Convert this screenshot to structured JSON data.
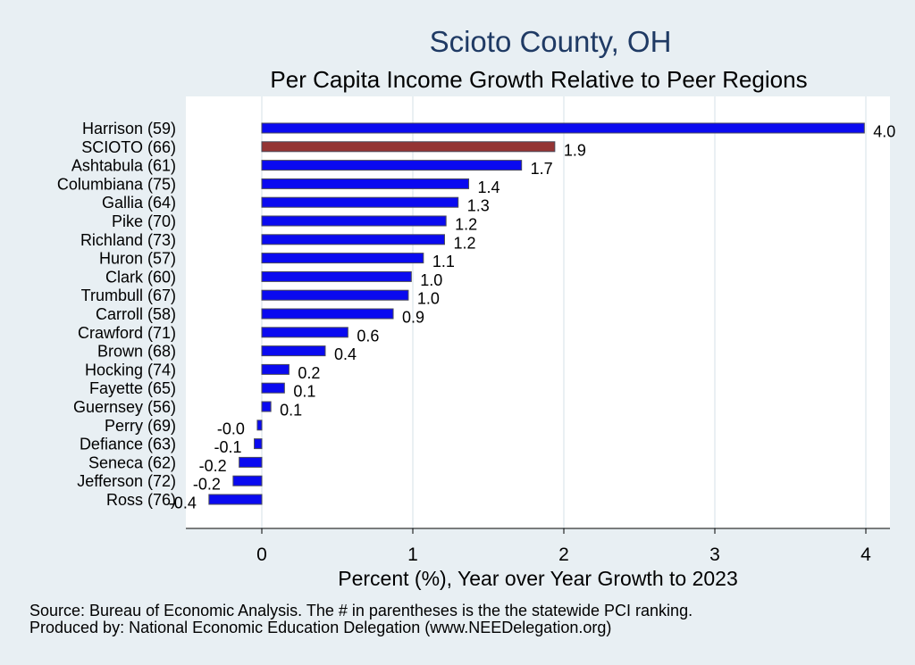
{
  "chart_data": {
    "type": "bar",
    "orientation": "horizontal",
    "title": "Scioto County, OH",
    "subtitle": "Per Capita Income Growth Relative to Peer Regions",
    "xlabel": "Percent (%), Year over Year Growth to 2023",
    "ylabel": "",
    "xlim": [
      -0.5,
      4.15
    ],
    "xticks": [
      0,
      1,
      2,
      3,
      4
    ],
    "xtick_labels": [
      "0",
      "1",
      "2",
      "3",
      "4"
    ],
    "grid": true,
    "categories": [
      "Harrison (59)",
      "SCIOTO (66)",
      "Ashtabula (61)",
      "Columbiana (75)",
      "Gallia (64)",
      "Pike (70)",
      "Richland (73)",
      "Huron (57)",
      "Clark (60)",
      "Trumbull (67)",
      "Carroll (58)",
      "Crawford (71)",
      "Brown (68)",
      "Hocking (74)",
      "Fayette (65)",
      "Guernsey (56)",
      "Perry (69)",
      "Defiance (63)",
      "Seneca (62)",
      "Jefferson (72)",
      "Ross (76)"
    ],
    "values": [
      3.99,
      1.94,
      1.72,
      1.37,
      1.3,
      1.22,
      1.21,
      1.07,
      0.99,
      0.97,
      0.87,
      0.57,
      0.42,
      0.18,
      0.15,
      0.06,
      -0.03,
      -0.05,
      -0.15,
      -0.19,
      -0.35
    ],
    "value_labels": [
      "4.0",
      "1.9",
      "1.7",
      "1.4",
      "1.3",
      "1.2",
      "1.2",
      "1.1",
      "1.0",
      "1.0",
      "0.9",
      "0.6",
      "0.4",
      "0.2",
      "0.1",
      "0.1",
      "-0.0",
      "-0.1",
      "-0.2",
      "-0.2",
      "-0.4"
    ],
    "highlight_index": 1,
    "colors": {
      "default": "#0a0af0",
      "highlight": "#943434",
      "bar_outline": "#4a4a5a",
      "plot_background": "#ffffff",
      "page_background": "#e8eff3",
      "grid": "#e4ecef",
      "title": "#1f3a64"
    },
    "notes": [
      "Source: Bureau of Economic Analysis. The # in parentheses is the the statewide PCI ranking.",
      "Produced by: National Economic Education Delegation (www.NEEDelegation.org)"
    ]
  }
}
